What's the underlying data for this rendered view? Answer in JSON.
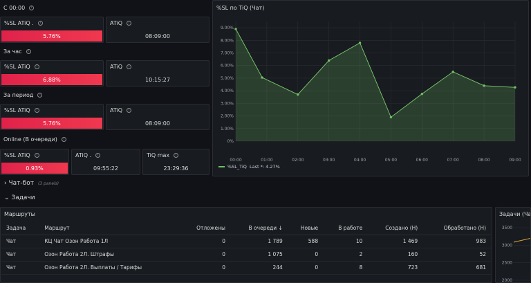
{
  "sections": {
    "since_midnight": "С 00:00",
    "per_hour": "За час",
    "per_period": "За период",
    "online": "Online (В очереди)"
  },
  "stats": {
    "since_midnight": {
      "sl_title": "%SL ATiQ .",
      "sl_value": "5.76%",
      "atiq_title": "ATiQ",
      "atiq_value": "08:09:00"
    },
    "per_hour": {
      "sl_title": "%SL ATiQ",
      "sl_value": "6.88%",
      "atiq_title": "ATiQ",
      "atiq_value": "10:15:27"
    },
    "per_period": {
      "sl_title": "%SL ATiQ",
      "sl_value": "5.76%",
      "atiq_title": "ATiQ",
      "atiq_value": "08:09:00"
    },
    "online": {
      "sl_title": "%SL ATiQ",
      "sl_value": "0.93%",
      "atiq_title": "ATiQ .",
      "atiq_value": "09:55:22",
      "max_title": "TiQ max",
      "max_value": "23:29:36"
    }
  },
  "chart_panel": {
    "title": "%SL по TiQ (Чат)",
    "legend_label": "%SL_TiQ",
    "legend_last": "Last *: 4.27%",
    "line_color": "#73bf69"
  },
  "chart_data": {
    "type": "area",
    "title": "%SL по TiQ (Чат)",
    "categories": [
      "00:00",
      "01:00",
      "02:00",
      "03:00",
      "04:00",
      "05:00",
      "06:00",
      "07:00",
      "08:00",
      "09:00"
    ],
    "y_ticks": [
      "0%",
      "1.00%",
      "2.00%",
      "3.00%",
      "4.00%",
      "5.00%",
      "6.00%",
      "7.00%",
      "8.00%",
      "9.00%"
    ],
    "ylim": [
      0,
      9.5
    ],
    "series": [
      {
        "name": "%SL_TiQ",
        "points": [
          [
            0,
            8.9
          ],
          [
            0.85,
            5.05
          ],
          [
            2,
            3.7
          ],
          [
            3,
            6.4
          ],
          [
            4,
            7.8
          ],
          [
            5,
            1.9
          ],
          [
            6,
            3.75
          ],
          [
            7,
            5.5
          ],
          [
            8,
            4.4
          ],
          [
            9,
            4.27
          ]
        ]
      }
    ]
  },
  "rows": {
    "chatbot": "Чат-бот",
    "chatbot_sub": "(3 panels)",
    "tasks": "Задачи"
  },
  "routes": {
    "title": "Маршруты",
    "headers": [
      "Задача",
      "Маршрут",
      "Отложены",
      "В очереди ↓",
      "Новые",
      "В работе",
      "Создано (Н)",
      "Обработано (Н)"
    ],
    "rows": [
      [
        "Чат",
        "КЦ Чат Озон Работа 1Л",
        "0",
        "1 789",
        "588",
        "10",
        "1 469",
        "983"
      ],
      [
        "Чат",
        "Озон Работа 2Л. Штрафы",
        "0",
        "1 075",
        "0",
        "2",
        "160",
        "52"
      ],
      [
        "Чат",
        "Озон Работа 2Л. Выплаты / Тарифы",
        "0",
        "244",
        "0",
        "8",
        "723",
        "681"
      ]
    ]
  },
  "tasks_chat": {
    "title": "Задачи (Чат",
    "y_ticks": [
      "3500",
      "3000",
      "2500",
      "2000"
    ]
  }
}
